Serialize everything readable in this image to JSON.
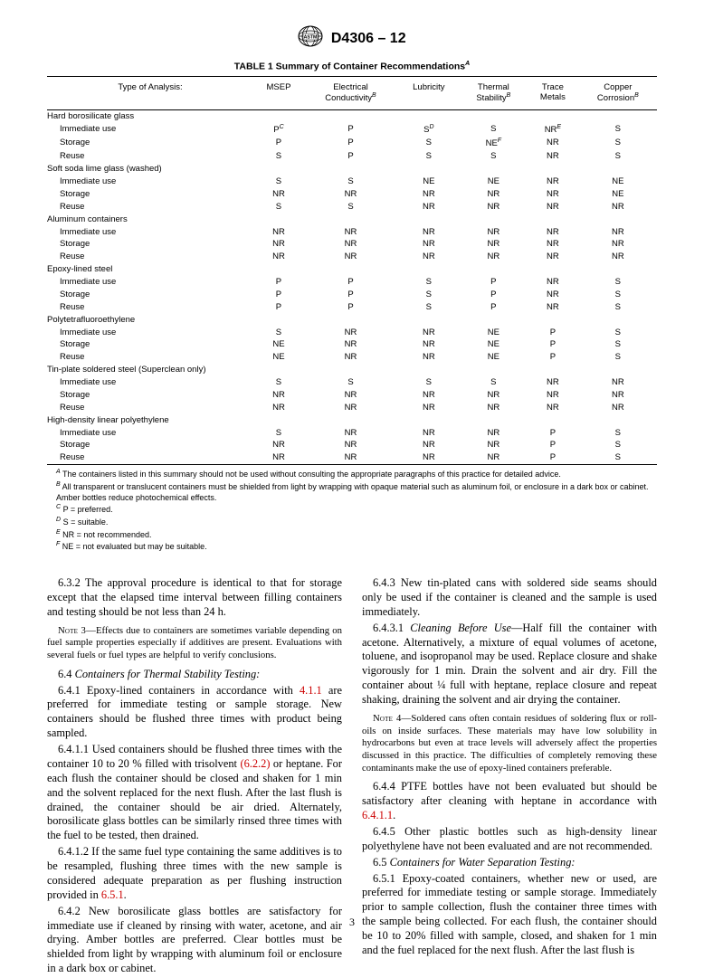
{
  "doc": {
    "designation": "D4306 – 12",
    "page_number": "3"
  },
  "table": {
    "title": "TABLE 1  Summary of Container Recommendations",
    "title_sup": "A",
    "col_header_label": "Type of Analysis:",
    "columns": [
      {
        "label": "MSEP",
        "sup": ""
      },
      {
        "label": "Electrical Conductivity",
        "sup": "B"
      },
      {
        "label": "Lubricity",
        "sup": ""
      },
      {
        "label": "Thermal Stability",
        "sup": "B"
      },
      {
        "label": "Trace Metals",
        "sup": ""
      },
      {
        "label": "Copper Corrosion",
        "sup": "B"
      }
    ],
    "groups": [
      {
        "name": "Hard borosilicate glass",
        "rows": [
          {
            "label": "Immediate use",
            "vals": [
              {
                "v": "P",
                "s": "C"
              },
              {
                "v": "P"
              },
              {
                "v": "S",
                "s": "D"
              },
              {
                "v": "S"
              },
              {
                "v": "NR",
                "s": "E"
              },
              {
                "v": "S"
              }
            ]
          },
          {
            "label": "Storage",
            "vals": [
              {
                "v": "P"
              },
              {
                "v": "P"
              },
              {
                "v": "S"
              },
              {
                "v": "NE",
                "s": "F"
              },
              {
                "v": "NR"
              },
              {
                "v": "S"
              }
            ]
          },
          {
            "label": "Reuse",
            "vals": [
              {
                "v": "S"
              },
              {
                "v": "P"
              },
              {
                "v": "S"
              },
              {
                "v": "S"
              },
              {
                "v": "NR"
              },
              {
                "v": "S"
              }
            ]
          }
        ]
      },
      {
        "name": "Soft soda lime glass (washed)",
        "rows": [
          {
            "label": "Immediate use",
            "vals": [
              {
                "v": "S"
              },
              {
                "v": "S"
              },
              {
                "v": "NE"
              },
              {
                "v": "NE"
              },
              {
                "v": "NR"
              },
              {
                "v": "NE"
              }
            ]
          },
          {
            "label": "Storage",
            "vals": [
              {
                "v": "NR"
              },
              {
                "v": "NR"
              },
              {
                "v": "NR"
              },
              {
                "v": "NR"
              },
              {
                "v": "NR"
              },
              {
                "v": "NE"
              }
            ]
          },
          {
            "label": "Reuse",
            "vals": [
              {
                "v": "S"
              },
              {
                "v": "S"
              },
              {
                "v": "NR"
              },
              {
                "v": "NR"
              },
              {
                "v": "NR"
              },
              {
                "v": "NR"
              }
            ]
          }
        ]
      },
      {
        "name": "Aluminum containers",
        "rows": [
          {
            "label": "Immediate use",
            "vals": [
              {
                "v": "NR"
              },
              {
                "v": "NR"
              },
              {
                "v": "NR"
              },
              {
                "v": "NR"
              },
              {
                "v": "NR"
              },
              {
                "v": "NR"
              }
            ]
          },
          {
            "label": "Storage",
            "vals": [
              {
                "v": "NR"
              },
              {
                "v": "NR"
              },
              {
                "v": "NR"
              },
              {
                "v": "NR"
              },
              {
                "v": "NR"
              },
              {
                "v": "NR"
              }
            ]
          },
          {
            "label": "Reuse",
            "vals": [
              {
                "v": "NR"
              },
              {
                "v": "NR"
              },
              {
                "v": "NR"
              },
              {
                "v": "NR"
              },
              {
                "v": "NR"
              },
              {
                "v": "NR"
              }
            ]
          }
        ]
      },
      {
        "name": "Epoxy-lined steel",
        "rows": [
          {
            "label": "Immediate use",
            "vals": [
              {
                "v": "P"
              },
              {
                "v": "P"
              },
              {
                "v": "S"
              },
              {
                "v": "P"
              },
              {
                "v": "NR"
              },
              {
                "v": "S"
              }
            ]
          },
          {
            "label": "Storage",
            "vals": [
              {
                "v": "P"
              },
              {
                "v": "P"
              },
              {
                "v": "S"
              },
              {
                "v": "P"
              },
              {
                "v": "NR"
              },
              {
                "v": "S"
              }
            ]
          },
          {
            "label": "Reuse",
            "vals": [
              {
                "v": "P"
              },
              {
                "v": "P"
              },
              {
                "v": "S"
              },
              {
                "v": "P"
              },
              {
                "v": "NR"
              },
              {
                "v": "S"
              }
            ]
          }
        ]
      },
      {
        "name": "Polytetrafluoroethylene",
        "rows": [
          {
            "label": "Immediate use",
            "vals": [
              {
                "v": "S"
              },
              {
                "v": "NR"
              },
              {
                "v": "NR"
              },
              {
                "v": "NE"
              },
              {
                "v": "P"
              },
              {
                "v": "S"
              }
            ]
          },
          {
            "label": "Storage",
            "vals": [
              {
                "v": "NE"
              },
              {
                "v": "NR"
              },
              {
                "v": "NR"
              },
              {
                "v": "NE"
              },
              {
                "v": "P"
              },
              {
                "v": "S"
              }
            ]
          },
          {
            "label": "Reuse",
            "vals": [
              {
                "v": "NE"
              },
              {
                "v": "NR"
              },
              {
                "v": "NR"
              },
              {
                "v": "NE"
              },
              {
                "v": "P"
              },
              {
                "v": "S"
              }
            ]
          }
        ]
      },
      {
        "name": "Tin-plate soldered steel (Superclean only)",
        "rows": [
          {
            "label": "Immediate use",
            "vals": [
              {
                "v": "S"
              },
              {
                "v": "S"
              },
              {
                "v": "S"
              },
              {
                "v": "S"
              },
              {
                "v": "NR"
              },
              {
                "v": "NR"
              }
            ]
          },
          {
            "label": "Storage",
            "vals": [
              {
                "v": "NR"
              },
              {
                "v": "NR"
              },
              {
                "v": "NR"
              },
              {
                "v": "NR"
              },
              {
                "v": "NR"
              },
              {
                "v": "NR"
              }
            ]
          },
          {
            "label": "Reuse",
            "vals": [
              {
                "v": "NR"
              },
              {
                "v": "NR"
              },
              {
                "v": "NR"
              },
              {
                "v": "NR"
              },
              {
                "v": "NR"
              },
              {
                "v": "NR"
              }
            ]
          }
        ]
      },
      {
        "name": "High-density linear polyethylene",
        "rows": [
          {
            "label": "Immediate use",
            "vals": [
              {
                "v": "S"
              },
              {
                "v": "NR"
              },
              {
                "v": "NR"
              },
              {
                "v": "NR"
              },
              {
                "v": "P"
              },
              {
                "v": "S"
              }
            ]
          },
          {
            "label": "Storage",
            "vals": [
              {
                "v": "NR"
              },
              {
                "v": "NR"
              },
              {
                "v": "NR"
              },
              {
                "v": "NR"
              },
              {
                "v": "P"
              },
              {
                "v": "S"
              }
            ]
          },
          {
            "label": "Reuse",
            "vals": [
              {
                "v": "NR"
              },
              {
                "v": "NR"
              },
              {
                "v": "NR"
              },
              {
                "v": "NR"
              },
              {
                "v": "P"
              },
              {
                "v": "S"
              }
            ]
          }
        ]
      }
    ],
    "footnotes": [
      {
        "k": "A",
        "t": "The containers listed in this summary should not be used without consulting the appropriate paragraphs of this practice for detailed advice."
      },
      {
        "k": "B",
        "t": "All transparent or translucent containers must be shielded from light by wrapping with opaque material such as aluminum foil, or enclosure in a dark box or cabinet. Amber bottles reduce photochemical effects.",
        "wrap": true
      },
      {
        "k": "C",
        "t": "P = preferred."
      },
      {
        "k": "D",
        "t": "S = suitable."
      },
      {
        "k": "E",
        "t": "NR = not recommended."
      },
      {
        "k": "F",
        "t": "NE = not evaluated but may be suitable."
      }
    ]
  },
  "body": {
    "left": [
      {
        "type": "p",
        "text": "6.3.2 The approval procedure is identical to that for storage except that the elapsed time interval between filling containers and testing should be not less than 24 h."
      },
      {
        "type": "note",
        "label": "Note 3—",
        "text": "Effects due to containers are sometimes variable depending on fuel sample properties especially if additives are present. Evaluations with several fuels or fuel types are helpful to verify conclusions."
      },
      {
        "type": "p",
        "html": "6.4 <span class='ital'>Containers for Thermal Stability Testing:</span>"
      },
      {
        "type": "p",
        "html": "6.4.1 Epoxy-lined containers in accordance with <span class='xref'>4.1.1</span> are preferred for immediate testing or sample storage. New containers should be flushed three times with product being sampled."
      },
      {
        "type": "p",
        "html": "6.4.1.1 Used containers should be flushed three times with the container 10 to 20 % filled with trisolvent <span class='xref'>(6.2.2)</span> or heptane. For each flush the container should be closed and shaken for 1 min and the solvent replaced for the next flush. After the last flush is drained, the container should be air dried. Alternately, borosilicate glass bottles can be similarly rinsed three times with the fuel to be tested, then drained."
      },
      {
        "type": "p",
        "html": "6.4.1.2 If the same fuel type containing the same additives is to be resampled, flushing three times with the new sample is considered adequate preparation as per flushing instruction provided in <span class='xref'>6.5.1</span>."
      },
      {
        "type": "p",
        "text": "6.4.2 New borosilicate glass bottles are satisfactory for immediate use if cleaned by rinsing with water, acetone, and air drying. Amber bottles are preferred. Clear bottles must be shielded from light by wrapping with aluminum foil or enclosure in a dark box or cabinet."
      }
    ],
    "right": [
      {
        "type": "p",
        "text": "6.4.3 New tin-plated cans with soldered side seams should only be used if the container is cleaned and the sample is used immediately."
      },
      {
        "type": "p",
        "html": "6.4.3.1 <span class='ital'>Cleaning Before Use</span>—Half fill the container with acetone. Alternatively, a mixture of equal volumes of acetone, toluene, and isopropanol may be used. Replace closure and shake vigorously for 1 min. Drain the solvent and air dry. Fill the container about ¼ full with heptane, replace closure and repeat shaking, draining the solvent and air drying the container."
      },
      {
        "type": "note",
        "label": "Note 4—",
        "text": "Soldered cans often contain residues of soldering flux or roll-oils on inside surfaces. These materials may have low solubility in hydrocarbons but even at trace levels will adversely affect the properties discussed in this practice. The difficulties of completely removing these contaminants make the use of epoxy-lined containers preferable."
      },
      {
        "type": "p",
        "html": "6.4.4 PTFE bottles have not been evaluated but should be satisfactory after cleaning with heptane in accordance with <span class='xref'>6.4.1.1</span>."
      },
      {
        "type": "p",
        "text": "6.4.5 Other plastic bottles such as high-density linear polyethylene have not been evaluated and are not recommended."
      },
      {
        "type": "p",
        "html": "6.5 <span class='ital'>Containers for Water Separation Testing:</span>"
      },
      {
        "type": "p",
        "text": "6.5.1 Epoxy-coated containers, whether new or used, are preferred for immediate testing or sample storage. Immediately prior to sample collection, flush the container three times with the sample being collected. For each flush, the container should be 10 to 20% filled with sample, closed, and shaken for 1 min and the fuel replaced for the next flush. After the last flush is"
      }
    ]
  }
}
